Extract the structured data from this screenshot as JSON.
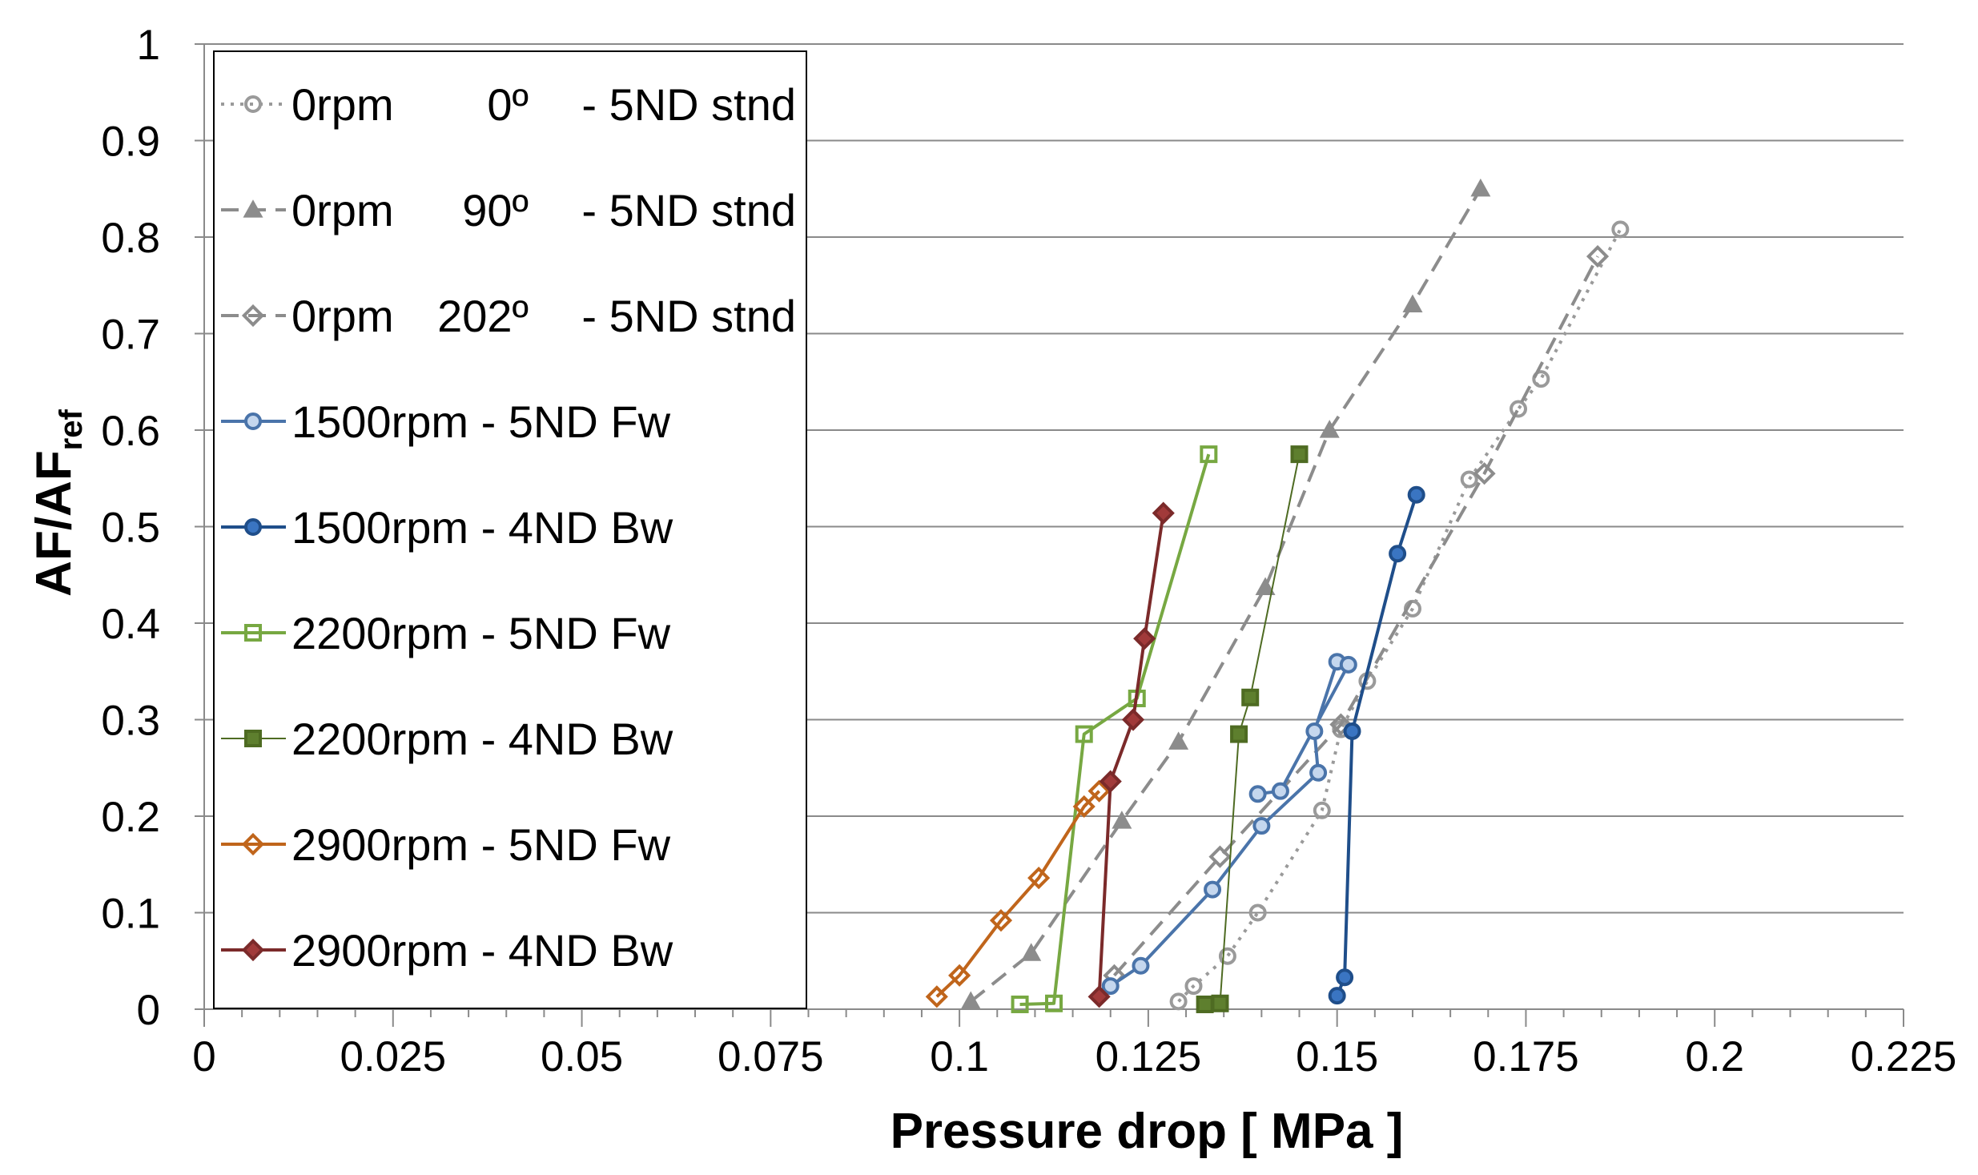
{
  "chart_data": {
    "type": "line",
    "title": "",
    "xlabel": "Pressure drop [ MPa ]",
    "ylabel": {
      "base": "AF/AF",
      "sub": "ref"
    },
    "xlim": [
      0,
      0.225
    ],
    "ylim": [
      0,
      1
    ],
    "xticks": [
      "0",
      "0.025",
      "0.05",
      "0.075",
      "0.1",
      "0.125",
      "0.15",
      "0.175",
      "0.2",
      "0.225"
    ],
    "yticks": [
      "0",
      "0.1",
      "0.2",
      "0.3",
      "0.4",
      "0.5",
      "0.6",
      "0.7",
      "0.8",
      "0.9",
      "1"
    ],
    "grid": "horizontal",
    "legend_position": "top-left",
    "series": [
      {
        "name": "0rpm 0º - 5ND stnd",
        "legend_parts": [
          "0rpm",
          "0º",
          "- 5ND stnd"
        ],
        "color": "#9a9a9a",
        "dash": "dotted",
        "marker": "circle",
        "fill": "none",
        "points": [
          [
            0.129,
            0.008
          ],
          [
            0.131,
            0.024
          ],
          [
            0.1355,
            0.055
          ],
          [
            0.1395,
            0.1
          ],
          [
            0.148,
            0.206
          ],
          [
            0.1505,
            0.29
          ],
          [
            0.154,
            0.34
          ],
          [
            0.16,
            0.415
          ],
          [
            0.1675,
            0.549
          ],
          [
            0.174,
            0.622
          ],
          [
            0.177,
            0.653
          ],
          [
            0.1875,
            0.808
          ]
        ]
      },
      {
        "name": "0rpm 90º - 5ND stnd",
        "legend_parts": [
          "0rpm",
          "90º",
          "- 5ND stnd"
        ],
        "color": "#8c8c8c",
        "dash": "dashed",
        "marker": "triangle",
        "fill": "solid",
        "points": [
          [
            0.1015,
            0.008
          ],
          [
            0.1095,
            0.058
          ],
          [
            0.1215,
            0.195
          ],
          [
            0.129,
            0.277
          ],
          [
            0.1405,
            0.437
          ],
          [
            0.149,
            0.6
          ],
          [
            0.16,
            0.73
          ],
          [
            0.169,
            0.85
          ]
        ]
      },
      {
        "name": "0rpm 202º - 5ND stnd",
        "legend_parts": [
          "0rpm",
          "202º",
          "- 5ND stnd"
        ],
        "color": "#8c8c8c",
        "dash": "dashed",
        "marker": "diamond",
        "fill": "none",
        "points": [
          [
            0.1205,
            0.035
          ],
          [
            0.1345,
            0.158
          ],
          [
            0.1505,
            0.295
          ],
          [
            0.1695,
            0.555
          ],
          [
            0.1845,
            0.78
          ]
        ]
      },
      {
        "name": "1500rpm - 5ND Fw",
        "legend_parts": [
          "1500rpm - 5ND Fw"
        ],
        "color": "#4a74aa",
        "marker": "circle",
        "fill": "#c5d7ee",
        "points": [
          [
            0.12,
            0.024
          ],
          [
            0.124,
            0.045
          ],
          [
            0.1335,
            0.124
          ],
          [
            0.14,
            0.19
          ],
          [
            0.1475,
            0.245
          ],
          [
            0.147,
            0.288
          ],
          [
            0.15,
            0.36
          ],
          [
            0.1515,
            0.357
          ],
          [
            0.1425,
            0.226
          ],
          [
            0.1395,
            0.223
          ]
        ]
      },
      {
        "name": "1500rpm - 4ND Bw",
        "legend_parts": [
          "1500rpm - 4ND Bw"
        ],
        "color": "#1f4e8a",
        "marker": "circle",
        "fill": "#3a75c2",
        "points": [
          [
            0.15,
            0.014
          ],
          [
            0.151,
            0.033
          ],
          [
            0.152,
            0.288
          ],
          [
            0.158,
            0.472
          ],
          [
            0.1605,
            0.533
          ]
        ]
      },
      {
        "name": "2200rpm - 5ND Fw",
        "legend_parts": [
          "2200rpm - 5ND Fw"
        ],
        "color": "#77a842",
        "marker": "square",
        "fill": "none",
        "points": [
          [
            0.108,
            0.005
          ],
          [
            0.1125,
            0.006
          ],
          [
            0.1165,
            0.285
          ],
          [
            0.1235,
            0.322
          ],
          [
            0.133,
            0.575
          ]
        ]
      },
      {
        "name": "2200rpm - 4ND Bw",
        "legend_parts": [
          "2200rpm - 4ND Bw"
        ],
        "color": "#4e6b22",
        "thin": true,
        "marker": "square",
        "fill": "#5e7f2e",
        "points": [
          [
            0.1325,
            0.005
          ],
          [
            0.1345,
            0.006
          ],
          [
            0.137,
            0.285
          ],
          [
            0.1385,
            0.323
          ],
          [
            0.145,
            0.575
          ]
        ]
      },
      {
        "name": "2900rpm - 5ND Fw",
        "legend_parts": [
          "2900rpm - 5ND Fw"
        ],
        "color": "#c0651b",
        "marker": "diamond",
        "fill": "none",
        "points": [
          [
            0.097,
            0.013
          ],
          [
            0.1,
            0.035
          ],
          [
            0.1055,
            0.092
          ],
          [
            0.1105,
            0.136
          ],
          [
            0.1165,
            0.21
          ],
          [
            0.1185,
            0.226
          ]
        ]
      },
      {
        "name": "2900rpm - 4ND Bw",
        "legend_parts": [
          "2900rpm - 4ND Bw"
        ],
        "color": "#7b2a2a",
        "marker": "diamond",
        "fill": "#a13a3a",
        "points": [
          [
            0.1185,
            0.013
          ],
          [
            0.12,
            0.236
          ],
          [
            0.123,
            0.3
          ],
          [
            0.1245,
            0.384
          ],
          [
            0.127,
            0.514
          ]
        ]
      }
    ]
  }
}
